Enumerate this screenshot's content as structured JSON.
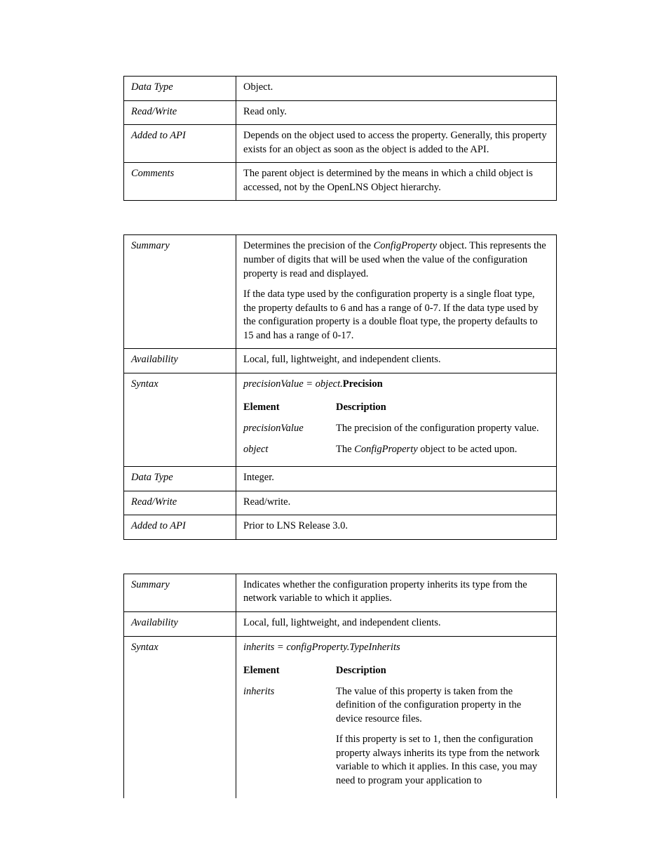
{
  "table1": {
    "rows": {
      "dataType": {
        "label": "Data Type",
        "value": "Object."
      },
      "readWrite": {
        "label": "Read/Write",
        "value": "Read only."
      },
      "addedToAPI": {
        "label": "Added to API",
        "value": "Depends on the object used to access the property. Generally, this property exists for an object as soon as the object is added to the API."
      },
      "comments": {
        "label": "Comments",
        "value": "The parent object is determined by the means in which a child object is accessed, not by the OpenLNS Object hierarchy."
      }
    }
  },
  "table2": {
    "summary": {
      "label": "Summary",
      "p1a": "Determines the precision of the ",
      "p1b": "ConfigProperty",
      "p1c": " object.  This represents the number of digits that will be used when the value of the configuration property is read and displayed.",
      "p2": "If the data type used by the configuration property is a single float type, the property defaults to 6 and has a range of 0-7. If the data type used by the configuration property is a double float type, the property defaults to 15 and has a range of 0-17."
    },
    "availability": {
      "label": "Availability",
      "value": "Local, full, lightweight, and independent clients."
    },
    "syntax": {
      "label": "Syntax",
      "expr_lhs": "precisionValue = object.",
      "expr_rhs": "Precision",
      "head_el": "Element",
      "head_desc": "Description",
      "r1_el": "precisionValue",
      "r1_desc": "The precision of the configuration property value.",
      "r2_el": "object",
      "r2_desc_a": "The ",
      "r2_desc_b": "ConfigProperty",
      "r2_desc_c": " object to be acted upon."
    },
    "dataType": {
      "label": "Data Type",
      "value": "Integer."
    },
    "readWrite": {
      "label": "Read/Write",
      "value": "Read/write."
    },
    "addedToAPI": {
      "label": "Added to API",
      "value": "Prior to LNS Release 3.0."
    }
  },
  "table3": {
    "summary": {
      "label": "Summary",
      "value": "Indicates whether the configuration property inherits its type from the network variable to which it applies."
    },
    "availability": {
      "label": "Availability",
      "value": "Local, full, lightweight, and independent clients."
    },
    "syntax": {
      "label": "Syntax",
      "expr": "inherits = configProperty.TypeInherits",
      "head_el": "Element",
      "head_desc": "Description",
      "r1_el": "inherits",
      "r1_desc1": "The value of this property is taken from the definition of the configuration property in the device resource files.",
      "r1_desc2": "If this property is set to 1, then the configuration property always inherits its type from the network variable to which it applies. In this case, you may need to program your application to"
    }
  }
}
